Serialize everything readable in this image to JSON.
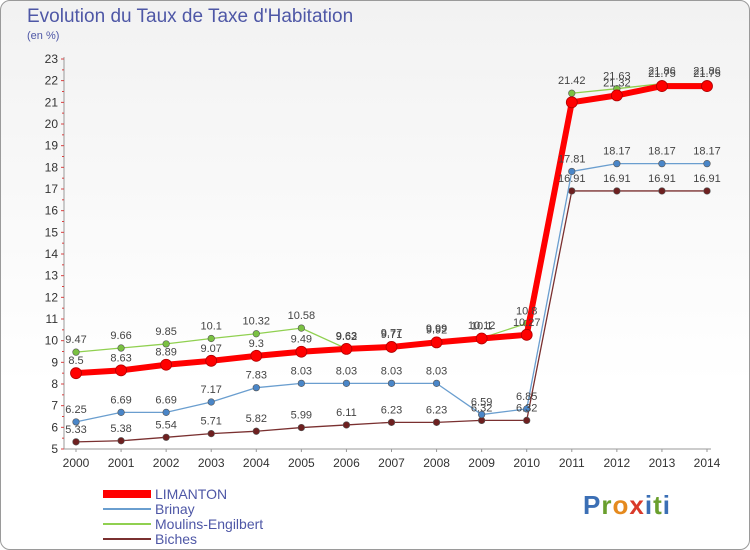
{
  "title": "Evolution du Taux de Taxe d'Habitation",
  "subtitle": "(en %)",
  "logo_text": "Proxiti",
  "chart_data": {
    "type": "line",
    "title": "Evolution du Taux de Taxe d'Habitation",
    "ylabel": "(en %)",
    "xlabel": "",
    "ylim": [
      5,
      23
    ],
    "grid": false,
    "legend_position": "bottom-left",
    "x": [
      "2000",
      "2001",
      "2002",
      "2003",
      "2004",
      "2005",
      "2006",
      "2007",
      "2008",
      "2009",
      "2010",
      "2011",
      "2012",
      "2013",
      "2014"
    ],
    "yticks": [
      "5",
      "6",
      "7",
      "8",
      "9",
      "10",
      "11",
      "12",
      "13",
      "14",
      "15",
      "16",
      "17",
      "18",
      "19",
      "20",
      "21",
      "22",
      "23"
    ],
    "series": [
      {
        "name": "LIMANTON",
        "color": "#ff0000",
        "marker": "#ff0000",
        "width": 6,
        "values": [
          8.5,
          8.63,
          8.89,
          9.07,
          9.3,
          9.49,
          9.62,
          9.71,
          9.92,
          10.1,
          10.27,
          21.0,
          21.32,
          21.75,
          21.75
        ],
        "labels": [
          "8.5",
          "8.63",
          "8.89",
          "9.07",
          "9.3",
          "9.49",
          "9.62",
          "9.71",
          "9.92",
          "10.1",
          "10.27",
          "",
          "21.32",
          "21.75",
          "21.75"
        ]
      },
      {
        "name": "Brinay",
        "color": "#6a9ecf",
        "marker": "#4a86c8",
        "width": 1.3,
        "values": [
          6.25,
          6.69,
          6.69,
          7.17,
          7.83,
          8.03,
          8.03,
          8.03,
          8.03,
          6.59,
          6.85,
          17.81,
          18.17,
          18.17,
          18.17
        ],
        "labels": [
          "6.25",
          "6.69",
          "6.69",
          "7.17",
          "7.83",
          "8.03",
          "8.03",
          "8.03",
          "8.03",
          "6.59",
          "6.85",
          "17.81",
          "18.17",
          "18.17",
          "18.17"
        ]
      },
      {
        "name": "Moulins-Engilbert",
        "color": "#90d050",
        "marker": "#7ac142",
        "width": 1.3,
        "values": [
          9.47,
          9.66,
          9.85,
          10.1,
          10.32,
          10.58,
          9.63,
          9.77,
          9.99,
          10.12,
          10.8,
          21.42,
          21.63,
          21.86,
          21.86
        ],
        "labels": [
          "9.47",
          "9.66",
          "9.85",
          "10.1",
          "10.32",
          "10.58",
          "9.63",
          "9.77",
          "9.99",
          "10.12",
          "10.8",
          "21.42",
          "21.63",
          "21.86",
          "21.86"
        ]
      },
      {
        "name": "Biches",
        "color": "#7a3030",
        "marker": "#6e2020",
        "width": 1.3,
        "values": [
          5.33,
          5.38,
          5.54,
          5.71,
          5.82,
          5.99,
          6.11,
          6.23,
          6.23,
          6.32,
          6.32,
          16.91,
          16.91,
          16.91,
          16.91
        ],
        "labels": [
          "5.33",
          "5.38",
          "5.54",
          "5.71",
          "5.82",
          "5.99",
          "6.11",
          "6.23",
          "6.23",
          "6.32",
          "6.32",
          "16.91",
          "16.91",
          "16.91",
          "16.91"
        ]
      }
    ]
  }
}
